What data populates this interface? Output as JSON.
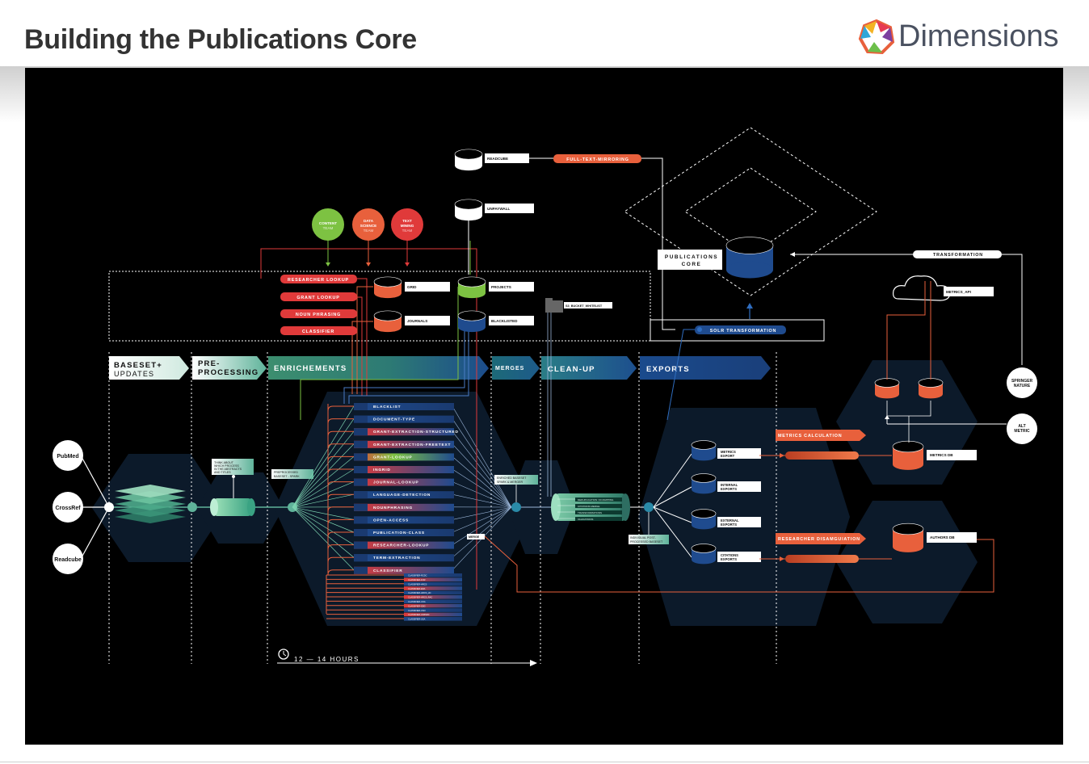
{
  "header": {
    "title": "Building the Publications Core",
    "logo_text": "Dimensions"
  },
  "colors": {
    "background": "#000000",
    "orange": "#e8603c",
    "red": "#e03a3a",
    "green": "#7dc242",
    "blue": "#1f4b8e",
    "teal": "#4ba98a"
  },
  "sources": [
    "PubMed",
    "CrossRef",
    "Readcube"
  ],
  "stages": [
    {
      "line1": "BASESET+",
      "line2": "UPDATES"
    },
    {
      "line1": "PRE-",
      "line2": "PROCESSING"
    },
    {
      "line1": "ENRICHEMENTS",
      "line2": ""
    },
    {
      "line1": "MERGES",
      "line2": ""
    },
    {
      "line1": "CLEAN-UP",
      "line2": ""
    },
    {
      "line1": "EXPORTS",
      "line2": ""
    }
  ],
  "teams": [
    {
      "line1": "CONTENT",
      "line2": "TEAM"
    },
    {
      "line1": "DATA",
      "line2": "SCIENCE",
      "line3": "TEAM"
    },
    {
      "line1": "TEXT",
      "line2": "MINING",
      "line3": "TEAM"
    }
  ],
  "lookups": [
    "RESEARCHER LOOKUP",
    "GRANT LOOKUP",
    "NOUN PHRASING",
    "CLASSIFIER"
  ],
  "databases": {
    "grid": "GRID",
    "journals": "JOURNALS",
    "projects": "PROJECTS",
    "blacklisted": "BLACKLISTED",
    "readcube": "READCUBE",
    "unpaywall": "UNPAYWALL",
    "bucket": "S3_BUCKET_WHITELIST",
    "metrics_db": "METRICS DB",
    "authors_db": "AUTHORS DB"
  },
  "full_text": "FULL-TEXT-MIRRORING",
  "publications_core": {
    "line1": "PUBLICATIONS",
    "line2": "CORE"
  },
  "solr": "SOLR TRANSFORMATION",
  "transformation": "TRANSFORMATION",
  "metrics_api": "METRICS_API",
  "springer": {
    "line1": "SPRINGER",
    "line2": "NATURE"
  },
  "altmetric": {
    "line1": "ALT",
    "line2": "METRIC"
  },
  "preproc_note": [
    "THINK ABOUT",
    "WHICH PROCESS",
    "IN THE ABSTRACTS",
    "AND TITLES"
  ],
  "preproc_out": [
    "PREPROCESSED",
    "BASESET - SPARK"
  ],
  "enrichments": [
    "BLACKLIST",
    "DOCUMENT-TYPE",
    "GRANT-EXTRACTION-STRUCTURED",
    "GRANT-EXTRACTION-FREETEXT",
    "GRANT-LOOKUP",
    "INGRID",
    "JOURNAL-LOOKUP",
    "LANGUAGE-DETECTION",
    "NOUNPHRASING",
    "OPEN-ACCESS",
    "PUBLICATION-CLASS",
    "RESEARCHER-LOOKUP",
    "TERM-EXTRACTION",
    "CLASSIFIER"
  ],
  "classifier_subs": [
    "CLASSIFIER-RCDC",
    "CLASSIFIER-FOR",
    "CLASSIFIER-HRCS",
    "CLASSIFIER-ERA",
    "CLASSIFIER-HRCS_HC",
    "CLASSIFIER-HRCS_RAC",
    "CLASSIFIER-UOA",
    "CLASSIFIER-SDG",
    "CLASSIFIER-CSO",
    "CLASSIFIER-ANZSRC",
    "CLASSIFIER-USA"
  ],
  "merge_note": [
    "ENRICHED BASESET",
    "SPARK & MERGER"
  ],
  "cleanup_items": [
    "DEDUPLICATION / ID MAPPING",
    "CITATIONS MERGE",
    "TRANSFORMATIONS",
    "VALIDATIONS"
  ],
  "cleanup_out": [
    "INDIVIDUAL POST-",
    "PROCESSED BASESET"
  ],
  "merge_tag": "MERGE",
  "exports": [
    {
      "line1": "METRICS",
      "line2": "EXPORT"
    },
    {
      "line1": "INTERNAL",
      "line2": "EXPORTS"
    },
    {
      "line1": "EXTERNAL",
      "line2": "EXPORTS"
    },
    {
      "line1": "CITATIONS",
      "line2": "EXPORTS"
    }
  ],
  "metrics_calc": "METRICS CALCULATION",
  "researcher_disamb": "RESEARCHER DISAMGUIATION",
  "timeline": "12 — 14 HOURS"
}
